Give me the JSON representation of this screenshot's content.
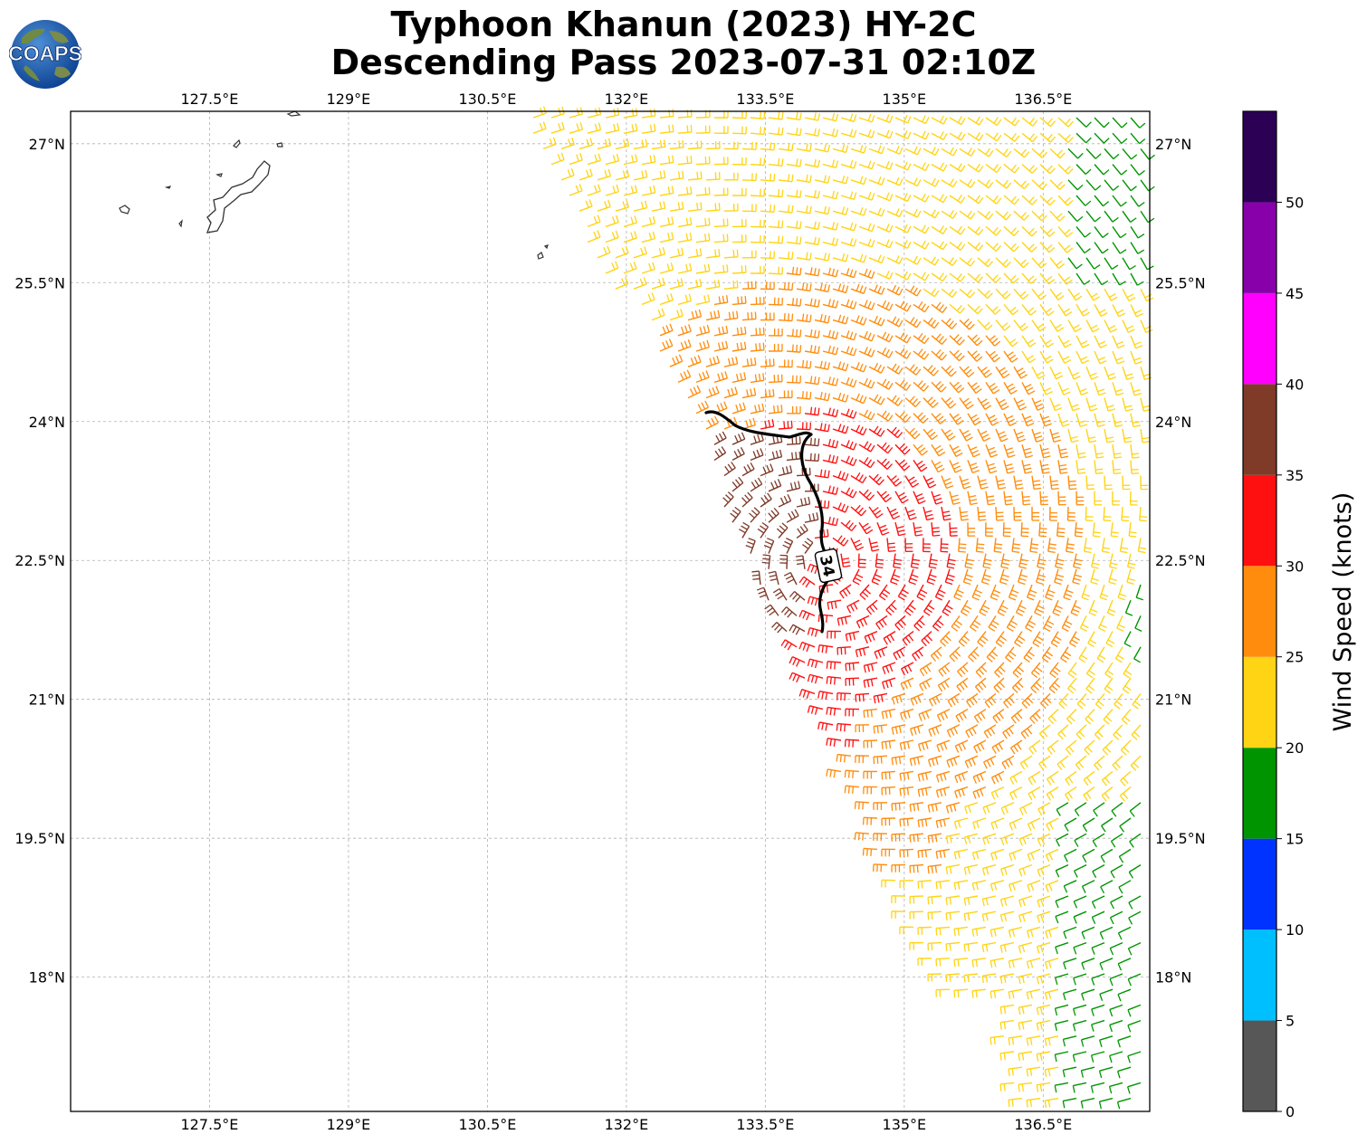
{
  "header": {
    "title_line1": "Typhoon Khanun (2023) HY-2C",
    "title_line2": "Descending Pass 2023-07-31 02:10Z"
  },
  "logo": {
    "text": "COAPS",
    "icon": "globe-logo-icon"
  },
  "map": {
    "lon_labels": [
      "127.5°E",
      "129°E",
      "130.5°E",
      "132°E",
      "133.5°E",
      "135°E",
      "136.5°E"
    ],
    "lat_labels": [
      "27°N",
      "25.5°N",
      "24°N",
      "22.5°N",
      "21°N",
      "19.5°N",
      "18°N"
    ],
    "lon_values": [
      127.5,
      129,
      130.5,
      132,
      133.5,
      135,
      136.5
    ],
    "lat_values": [
      27,
      25.5,
      24,
      22.5,
      21,
      19.5,
      18
    ],
    "extent": {
      "lon_min": 126.0,
      "lon_max": 137.65,
      "lat_min": 16.55,
      "lat_max": 27.35
    },
    "contour_label": "34",
    "gridlines": true
  },
  "colorbar": {
    "label": "Wind Speed (knots)",
    "ticks": [
      "0",
      "5",
      "10",
      "15",
      "20",
      "25",
      "30",
      "35",
      "40",
      "45",
      "50"
    ],
    "bins": [
      {
        "min": 0,
        "max": 5,
        "color": "#575757"
      },
      {
        "min": 5,
        "max": 10,
        "color": "#00bfff"
      },
      {
        "min": 10,
        "max": 15,
        "color": "#0033ff"
      },
      {
        "min": 15,
        "max": 20,
        "color": "#009500"
      },
      {
        "min": 20,
        "max": 25,
        "color": "#ffd414"
      },
      {
        "min": 25,
        "max": 30,
        "color": "#ff8c0c"
      },
      {
        "min": 30,
        "max": 35,
        "color": "#ff1010"
      },
      {
        "min": 35,
        "max": 40,
        "color": "#7f3a28"
      },
      {
        "min": 40,
        "max": 45,
        "color": "#ff00ff"
      },
      {
        "min": 45,
        "max": 50,
        "color": "#8800aa"
      },
      {
        "min": 50,
        "max": 55,
        "color": "#2b0055"
      }
    ]
  }
}
